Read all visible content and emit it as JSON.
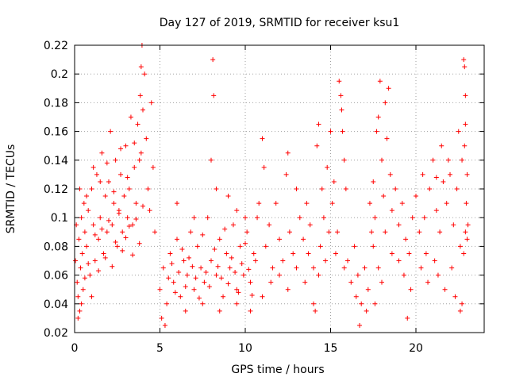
{
  "chart_data": {
    "type": "scatter",
    "title": "Day 127 of 2019, SRMTID for receiver ksu1",
    "xlabel": "GPS time / hours",
    "ylabel": "SRMTID / TECUs",
    "xlim": [
      0,
      24
    ],
    "ylim": [
      0.02,
      0.22
    ],
    "xticks": [
      0,
      5,
      10,
      15,
      20
    ],
    "xtick_labels": [
      "0",
      "5",
      "10",
      "15",
      "20"
    ],
    "yticks": [
      0.02,
      0.04,
      0.06,
      0.08,
      0.1,
      0.12,
      0.14,
      0.16,
      0.18,
      0.2,
      0.22
    ],
    "ytick_labels": [
      "0.02",
      "0.04",
      "0.06",
      "0.08",
      "0.1",
      "0.12",
      "0.14",
      "0.16",
      "0.18",
      "0.2",
      "0.22"
    ],
    "grid": true,
    "marker": "+",
    "series": [
      {
        "name": "SRMTID",
        "color": "#ff0000",
        "points": [
          [
            0.05,
            0.07
          ],
          [
            0.1,
            0.095
          ],
          [
            0.15,
            0.055
          ],
          [
            0.2,
            0.045
          ],
          [
            0.25,
            0.085
          ],
          [
            0.3,
            0.035
          ],
          [
            0.35,
            0.065
          ],
          [
            0.4,
            0.1
          ],
          [
            0.45,
            0.075
          ],
          [
            0.5,
            0.05
          ],
          [
            0.55,
            0.11
          ],
          [
            0.6,
            0.09
          ],
          [
            0.7,
            0.08
          ],
          [
            0.8,
            0.105
          ],
          [
            0.9,
            0.06
          ],
          [
            1.0,
            0.12
          ],
          [
            1.1,
            0.095
          ],
          [
            1.2,
            0.07
          ],
          [
            1.3,
            0.13
          ],
          [
            1.4,
            0.085
          ],
          [
            1.5,
            0.1
          ],
          [
            1.6,
            0.145
          ],
          [
            1.7,
            0.075
          ],
          [
            1.8,
            0.115
          ],
          [
            1.9,
            0.09
          ],
          [
            2.0,
            0.125
          ],
          [
            2.1,
            0.16
          ],
          [
            2.2,
            0.095
          ],
          [
            2.3,
            0.11
          ],
          [
            2.4,
            0.14
          ],
          [
            2.5,
            0.08
          ],
          [
            2.6,
            0.105
          ],
          [
            2.7,
            0.13
          ],
          [
            2.8,
            0.09
          ],
          [
            2.9,
            0.115
          ],
          [
            3.0,
            0.15
          ],
          [
            3.1,
            0.1
          ],
          [
            3.2,
            0.12
          ],
          [
            3.3,
            0.17
          ],
          [
            3.4,
            0.095
          ],
          [
            3.5,
            0.135
          ],
          [
            3.6,
            0.11
          ],
          [
            3.7,
            0.165
          ],
          [
            3.8,
            0.14
          ],
          [
            3.85,
            0.185
          ],
          [
            3.9,
            0.205
          ],
          [
            3.95,
            0.22
          ],
          [
            4.0,
            0.175
          ],
          [
            4.1,
            0.2
          ],
          [
            4.2,
            0.155
          ],
          [
            4.3,
            0.12
          ],
          [
            4.4,
            0.105
          ],
          [
            4.5,
            0.18
          ],
          [
            4.6,
            0.135
          ],
          [
            4.7,
            0.09
          ],
          [
            0.2,
            0.03
          ],
          [
            0.4,
            0.04
          ],
          [
            0.6,
            0.058
          ],
          [
            0.8,
            0.068
          ],
          [
            1.0,
            0.045
          ],
          [
            1.2,
            0.088
          ],
          [
            1.4,
            0.063
          ],
          [
            1.6,
            0.092
          ],
          [
            1.8,
            0.072
          ],
          [
            2.0,
            0.098
          ],
          [
            2.2,
            0.066
          ],
          [
            2.4,
            0.083
          ],
          [
            2.6,
            0.103
          ],
          [
            2.8,
            0.077
          ],
          [
            3.0,
            0.086
          ],
          [
            3.2,
            0.094
          ],
          [
            3.4,
            0.074
          ],
          [
            3.6,
            0.099
          ],
          [
            3.8,
            0.082
          ],
          [
            4.0,
            0.108
          ],
          [
            0.3,
            0.12
          ],
          [
            0.7,
            0.115
          ],
          [
            1.1,
            0.135
          ],
          [
            1.5,
            0.125
          ],
          [
            1.9,
            0.138
          ],
          [
            2.3,
            0.118
          ],
          [
            2.7,
            0.148
          ],
          [
            3.1,
            0.128
          ],
          [
            3.5,
            0.152
          ],
          [
            3.9,
            0.145
          ],
          [
            5.0,
            0.05
          ],
          [
            5.2,
            0.065
          ],
          [
            5.4,
            0.04
          ],
          [
            5.6,
            0.075
          ],
          [
            5.8,
            0.055
          ],
          [
            6.0,
            0.085
          ],
          [
            6.2,
            0.045
          ],
          [
            6.4,
            0.07
          ],
          [
            6.6,
            0.06
          ],
          [
            6.8,
            0.09
          ],
          [
            7.0,
            0.05
          ],
          [
            7.2,
            0.08
          ],
          [
            7.4,
            0.065
          ],
          [
            7.6,
            0.055
          ],
          [
            7.8,
            0.1
          ],
          [
            8.0,
            0.07
          ],
          [
            8.1,
            0.21
          ],
          [
            8.15,
            0.185
          ],
          [
            8.3,
            0.06
          ],
          [
            8.5,
            0.085
          ],
          [
            8.7,
            0.045
          ],
          [
            8.9,
            0.075
          ],
          [
            9.1,
            0.065
          ],
          [
            9.3,
            0.095
          ],
          [
            9.5,
            0.05
          ],
          [
            9.7,
            0.08
          ],
          [
            9.9,
            0.06
          ],
          [
            10.1,
            0.09
          ],
          [
            10.3,
            0.055
          ],
          [
            10.5,
            0.075
          ],
          [
            5.1,
            0.03
          ],
          [
            5.3,
            0.025
          ],
          [
            5.5,
            0.058
          ],
          [
            5.7,
            0.068
          ],
          [
            5.9,
            0.048
          ],
          [
            6.1,
            0.062
          ],
          [
            6.3,
            0.078
          ],
          [
            6.5,
            0.052
          ],
          [
            6.7,
            0.072
          ],
          [
            6.9,
            0.066
          ],
          [
            7.1,
            0.058
          ],
          [
            7.3,
            0.044
          ],
          [
            7.5,
            0.088
          ],
          [
            7.7,
            0.062
          ],
          [
            7.9,
            0.052
          ],
          [
            8.2,
            0.078
          ],
          [
            8.4,
            0.066
          ],
          [
            8.6,
            0.058
          ],
          [
            8.8,
            0.092
          ],
          [
            9.0,
            0.054
          ],
          [
            9.2,
            0.072
          ],
          [
            9.4,
            0.062
          ],
          [
            9.6,
            0.048
          ],
          [
            9.8,
            0.068
          ],
          [
            10.0,
            0.082
          ],
          [
            10.2,
            0.064
          ],
          [
            10.4,
            0.046
          ],
          [
            10.6,
            0.07
          ],
          [
            6.0,
            0.11
          ],
          [
            7.0,
            0.1
          ],
          [
            8.0,
            0.14
          ],
          [
            8.3,
            0.12
          ],
          [
            9.0,
            0.115
          ],
          [
            9.5,
            0.105
          ],
          [
            10.0,
            0.1
          ],
          [
            6.5,
            0.035
          ],
          [
            7.5,
            0.04
          ],
          [
            8.5,
            0.035
          ],
          [
            9.5,
            0.04
          ],
          [
            10.3,
            0.035
          ],
          [
            10.7,
            0.1
          ],
          [
            10.8,
            0.11
          ],
          [
            11.0,
            0.155
          ],
          [
            11.1,
            0.135
          ],
          [
            11.2,
            0.08
          ],
          [
            11.4,
            0.095
          ],
          [
            11.6,
            0.065
          ],
          [
            11.8,
            0.11
          ],
          [
            12.0,
            0.085
          ],
          [
            12.2,
            0.07
          ],
          [
            12.4,
            0.13
          ],
          [
            12.5,
            0.145
          ],
          [
            12.6,
            0.09
          ],
          [
            12.8,
            0.075
          ],
          [
            13.0,
            0.12
          ],
          [
            13.2,
            0.1
          ],
          [
            13.4,
            0.085
          ],
          [
            13.6,
            0.11
          ],
          [
            13.8,
            0.095
          ],
          [
            14.0,
            0.065
          ],
          [
            11.0,
            0.045
          ],
          [
            11.5,
            0.055
          ],
          [
            12.0,
            0.06
          ],
          [
            12.5,
            0.05
          ],
          [
            13.0,
            0.065
          ],
          [
            13.5,
            0.055
          ],
          [
            14.0,
            0.04
          ],
          [
            14.1,
            0.035
          ],
          [
            14.3,
            0.06
          ],
          [
            13.7,
            0.075
          ],
          [
            14.2,
            0.15
          ],
          [
            14.3,
            0.165
          ],
          [
            14.5,
            0.12
          ],
          [
            14.6,
            0.1
          ],
          [
            14.8,
            0.135
          ],
          [
            15.0,
            0.16
          ],
          [
            15.1,
            0.11
          ],
          [
            15.2,
            0.125
          ],
          [
            15.4,
            0.09
          ],
          [
            15.5,
            0.195
          ],
          [
            15.6,
            0.185
          ],
          [
            15.65,
            0.175
          ],
          [
            15.7,
            0.16
          ],
          [
            15.8,
            0.14
          ],
          [
            15.9,
            0.12
          ],
          [
            14.4,
            0.08
          ],
          [
            14.7,
            0.07
          ],
          [
            14.9,
            0.09
          ],
          [
            15.3,
            0.075
          ],
          [
            15.8,
            0.065
          ],
          [
            16.0,
            0.07
          ],
          [
            16.2,
            0.055
          ],
          [
            16.4,
            0.08
          ],
          [
            16.5,
            0.045
          ],
          [
            16.6,
            0.06
          ],
          [
            16.8,
            0.04
          ],
          [
            17.0,
            0.065
          ],
          [
            17.1,
            0.035
          ],
          [
            16.7,
            0.025
          ],
          [
            17.2,
            0.05
          ],
          [
            17.3,
            0.11
          ],
          [
            17.4,
            0.09
          ],
          [
            17.5,
            0.125
          ],
          [
            17.6,
            0.1
          ],
          [
            17.7,
            0.16
          ],
          [
            17.8,
            0.17
          ],
          [
            17.9,
            0.195
          ],
          [
            18.0,
            0.14
          ],
          [
            18.1,
            0.115
          ],
          [
            18.2,
            0.18
          ],
          [
            18.3,
            0.155
          ],
          [
            18.4,
            0.19
          ],
          [
            18.5,
            0.13
          ],
          [
            18.6,
            0.105
          ],
          [
            18.8,
            0.12
          ],
          [
            19.0,
            0.095
          ],
          [
            19.2,
            0.11
          ],
          [
            19.4,
            0.085
          ],
          [
            19.6,
            0.075
          ],
          [
            19.8,
            0.1
          ],
          [
            17.5,
            0.08
          ],
          [
            17.8,
            0.065
          ],
          [
            18.2,
            0.09
          ],
          [
            18.6,
            0.075
          ],
          [
            19.0,
            0.07
          ],
          [
            19.3,
            0.06
          ],
          [
            19.7,
            0.05
          ],
          [
            17.6,
            0.04
          ],
          [
            18.0,
            0.055
          ],
          [
            19.5,
            0.03
          ],
          [
            20.0,
            0.115
          ],
          [
            20.2,
            0.09
          ],
          [
            20.4,
            0.13
          ],
          [
            20.5,
            0.1
          ],
          [
            20.6,
            0.075
          ],
          [
            20.8,
            0.12
          ],
          [
            21.0,
            0.14
          ],
          [
            21.2,
            0.105
          ],
          [
            21.4,
            0.09
          ],
          [
            21.5,
            0.15
          ],
          [
            21.6,
            0.125
          ],
          [
            21.8,
            0.11
          ],
          [
            22.0,
            0.13
          ],
          [
            22.2,
            0.095
          ],
          [
            22.4,
            0.12
          ],
          [
            22.5,
            0.16
          ],
          [
            22.6,
            0.08
          ],
          [
            22.7,
            0.14
          ],
          [
            20.3,
            0.065
          ],
          [
            20.7,
            0.055
          ],
          [
            21.1,
            0.07
          ],
          [
            21.3,
            0.06
          ],
          [
            21.7,
            0.05
          ],
          [
            22.1,
            0.065
          ],
          [
            22.3,
            0.045
          ],
          [
            22.6,
            0.035
          ],
          [
            22.7,
            0.04
          ],
          [
            22.8,
            0.075
          ],
          [
            22.9,
            0.09
          ],
          [
            23.0,
            0.085
          ],
          [
            22.8,
            0.21
          ],
          [
            22.85,
            0.205
          ],
          [
            22.9,
            0.185
          ],
          [
            22.9,
            0.165
          ],
          [
            22.85,
            0.15
          ],
          [
            23.0,
            0.13
          ],
          [
            22.95,
            0.11
          ],
          [
            23.05,
            0.095
          ],
          [
            21.9,
            0.14
          ],
          [
            21.2,
            0.128
          ]
        ]
      }
    ]
  }
}
